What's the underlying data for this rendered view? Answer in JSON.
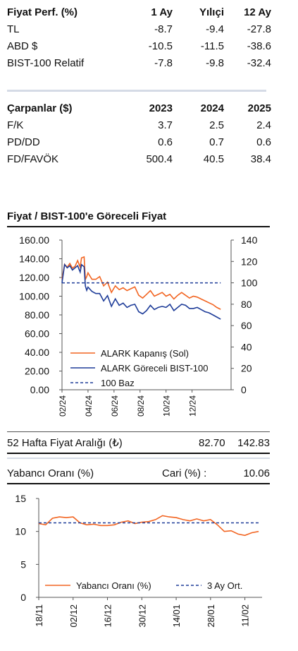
{
  "performance": {
    "header": [
      "Fiyat Perf. (%)",
      "1 Ay",
      "Yılıçi",
      "12 Ay"
    ],
    "rows": [
      {
        "label": "TL",
        "values": [
          "-8.7",
          "-9.4",
          "-27.8"
        ]
      },
      {
        "label": "ABD $",
        "values": [
          "-10.5",
          "-11.5",
          "-38.6"
        ]
      },
      {
        "label": "BIST-100 Relatif",
        "values": [
          "-7.8",
          "-9.8",
          "-32.4"
        ]
      }
    ]
  },
  "multiples": {
    "header": [
      "Çarpanlar ($)",
      "2023",
      "2024",
      "2025"
    ],
    "rows": [
      {
        "label": "F/K",
        "values": [
          "3.7",
          "2.5",
          "2.4"
        ]
      },
      {
        "label": "PD/DD",
        "values": [
          "0.6",
          "0.7",
          "0.6"
        ]
      },
      {
        "label": "FD/FAVÖK",
        "values": [
          "500.4",
          "40.5",
          "38.4"
        ]
      }
    ]
  },
  "chart1_title": "Fiyat / BIST-100'e Göreceli Fiyat",
  "range": {
    "label": "52 Hafta Fiyat Aralığı (₺)",
    "low": "82.70",
    "high": "142.83"
  },
  "foreign": {
    "label": "Yabancı Oranı (%)",
    "current_label": "Cari (%) :",
    "current_value": "10.06"
  },
  "chart_data": [
    {
      "type": "line",
      "x_tick_labels": [
        "02/24",
        "04/24",
        "06/24",
        "08/24",
        "10/24",
        "12/24"
      ],
      "x_range": [
        0,
        13
      ],
      "x_ticks": [
        0,
        2,
        4,
        6,
        8,
        10
      ],
      "y_left": {
        "min": 0,
        "max": 160,
        "ticks": [
          "0.00",
          "20.00",
          "40.00",
          "60.00",
          "80.00",
          "100.00",
          "120.00",
          "140.00",
          "160.00"
        ]
      },
      "y_right": {
        "min": 0,
        "max": 140,
        "ticks": [
          "0",
          "20",
          "40",
          "60",
          "80",
          "100",
          "120",
          "140"
        ]
      },
      "legend_position": "bottom-center",
      "series": [
        {
          "name": "ALARK Kapanış (Sol)",
          "axis": "left",
          "color": "#f26522",
          "x": [
            0,
            0.2,
            0.4,
            0.6,
            0.8,
            1.0,
            1.2,
            1.4,
            1.5,
            1.7,
            1.8,
            1.9,
            2.0,
            2.3,
            2.6,
            2.9,
            3.2,
            3.5,
            3.8,
            4.1,
            4.4,
            4.7,
            5.0,
            5.3,
            5.6,
            5.9,
            6.2,
            6.5,
            6.8,
            7.1,
            7.4,
            7.7,
            8.0,
            8.3,
            8.6,
            8.9,
            9.2,
            9.5,
            9.8,
            10.1,
            10.4,
            10.7,
            11.0,
            11.3,
            11.6,
            11.9,
            12.2
          ],
          "y": [
            118,
            134,
            131,
            135,
            130,
            132,
            138,
            131,
            141,
            142,
            118,
            121,
            125,
            118,
            118,
            121,
            111,
            115,
            104,
            111,
            107,
            109,
            106,
            108,
            110,
            101,
            98,
            102,
            106,
            100,
            102,
            104,
            100,
            102,
            97,
            101,
            104,
            101,
            98,
            100,
            99,
            97,
            95,
            93,
            91,
            88,
            86
          ]
        },
        {
          "name": "ALARK Göreceli BIST-100",
          "axis": "right",
          "color": "#1f3d99",
          "x": [
            0,
            0.2,
            0.4,
            0.6,
            0.8,
            1.0,
            1.2,
            1.4,
            1.5,
            1.7,
            1.8,
            1.9,
            2.0,
            2.3,
            2.6,
            2.9,
            3.2,
            3.5,
            3.8,
            4.1,
            4.4,
            4.7,
            5.0,
            5.3,
            5.6,
            5.9,
            6.2,
            6.5,
            6.8,
            7.1,
            7.4,
            7.7,
            8.0,
            8.3,
            8.6,
            8.9,
            9.2,
            9.5,
            9.8,
            10.1,
            10.4,
            10.7,
            11.0,
            11.3,
            11.6,
            11.9,
            12.2
          ],
          "y": [
            100,
            117,
            114,
            116,
            112,
            114,
            116,
            110,
            117,
            115,
            97,
            93,
            96,
            92,
            90,
            90,
            83,
            88,
            78,
            85,
            79,
            81,
            77,
            79,
            80,
            73,
            71,
            74,
            79,
            75,
            77,
            78,
            77,
            80,
            74,
            77,
            80,
            79,
            76,
            76,
            77,
            75,
            73,
            72,
            70,
            68,
            66
          ]
        },
        {
          "name": "100 Baz",
          "axis": "right",
          "color": "#1f3d99",
          "dashed": true,
          "x": [
            0,
            12.2
          ],
          "y": [
            100,
            100
          ]
        }
      ]
    },
    {
      "type": "line",
      "x_tick_labels": [
        "18/11",
        "02/12",
        "16/12",
        "30/12",
        "14/01",
        "28/01",
        "11/02"
      ],
      "x_range": [
        0,
        13
      ],
      "x_ticks": [
        0,
        2,
        4,
        6,
        8,
        10,
        12
      ],
      "y": {
        "min": 0,
        "max": 15,
        "ticks": [
          "0",
          "5",
          "10",
          "15"
        ]
      },
      "legend_position": "bottom-center",
      "series": [
        {
          "name": "Yabancı Oranı (%)",
          "color": "#f26522",
          "x": [
            0,
            0.4,
            0.8,
            1.2,
            1.6,
            2.0,
            2.4,
            2.8,
            3.2,
            3.6,
            4.0,
            4.4,
            4.8,
            5.2,
            5.6,
            6.0,
            6.4,
            6.8,
            7.2,
            7.6,
            8.0,
            8.4,
            8.8,
            9.2,
            9.6,
            10.0,
            10.4,
            10.8,
            11.2,
            11.6,
            12.0,
            12.4,
            12.8
          ],
          "y": [
            11.2,
            11.0,
            12.0,
            12.2,
            12.1,
            12.2,
            11.3,
            11.0,
            11.1,
            10.9,
            10.9,
            11.0,
            11.4,
            11.6,
            11.2,
            11.4,
            11.5,
            11.8,
            12.4,
            12.2,
            12.1,
            11.8,
            11.6,
            11.9,
            11.6,
            11.8,
            11.0,
            10.0,
            10.1,
            9.6,
            9.4,
            9.8,
            10.0
          ]
        },
        {
          "name": "3 Ay Ort.",
          "color": "#1f3d99",
          "dashed": true,
          "x": [
            0,
            12.8
          ],
          "y": [
            11.3,
            11.3
          ]
        }
      ]
    }
  ]
}
